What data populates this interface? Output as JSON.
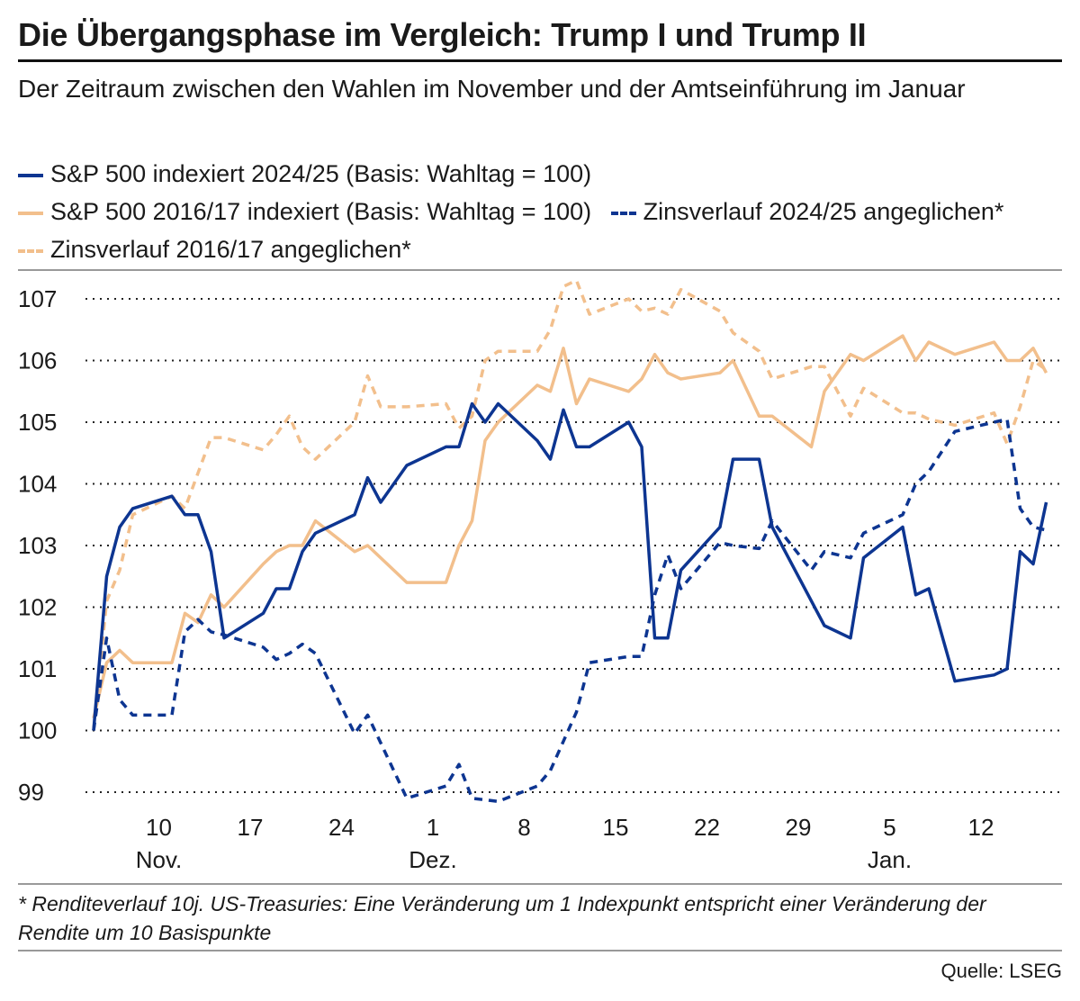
{
  "title": "Die Übergangsphase im Vergleich: Trump I und Trump II",
  "subtitle": "Der Zeitraum zwischen den Wahlen im November und der Amtseinführung im Januar",
  "footnote": "* Renditeverlauf 10j. US-Treasuries: Eine Veränderung um 1 Indexpunkt entspricht einer Veränderung der Rendite um 10 Basispunkte",
  "source": "Quelle: LSEG",
  "colors": {
    "blue": "#0d3591",
    "orange": "#f2bf8c"
  },
  "chart_data": {
    "type": "line",
    "xlabel": "",
    "ylabel": "",
    "ylim": [
      99,
      107
    ],
    "yticks": [
      99,
      100,
      101,
      102,
      103,
      104,
      105,
      106,
      107
    ],
    "xticks": [
      {
        "date": "2024-11-10",
        "label": "10",
        "month": "Nov."
      },
      {
        "date": "2024-11-17",
        "label": "17",
        "month": ""
      },
      {
        "date": "2024-11-24",
        "label": "24",
        "month": ""
      },
      {
        "date": "2024-12-01",
        "label": "1",
        "month": "Dez."
      },
      {
        "date": "2024-12-08",
        "label": "8",
        "month": ""
      },
      {
        "date": "2024-12-15",
        "label": "15",
        "month": ""
      },
      {
        "date": "2024-12-22",
        "label": "22",
        "month": ""
      },
      {
        "date": "2024-12-29",
        "label": "29",
        "month": ""
      },
      {
        "date": "2025-01-05",
        "label": "5",
        "month": "Jan."
      },
      {
        "date": "2025-01-12",
        "label": "12",
        "month": ""
      }
    ],
    "grid": "horizontal dotted",
    "legend_placement": "top",
    "series": [
      {
        "name": "S&P 500 indexiert 2024/25 (Basis: Wahltag = 100)",
        "color": "#0d3591",
        "style": "solid",
        "points": [
          [
            "2024-11-05",
            100
          ],
          [
            "2024-11-06",
            102.5
          ],
          [
            "2024-11-07",
            103.3
          ],
          [
            "2024-11-08",
            103.6
          ],
          [
            "2024-11-11",
            103.8
          ],
          [
            "2024-11-12",
            103.5
          ],
          [
            "2024-11-13",
            103.5
          ],
          [
            "2024-11-14",
            102.9
          ],
          [
            "2024-11-15",
            101.5
          ],
          [
            "2024-11-18",
            101.9
          ],
          [
            "2024-11-19",
            102.3
          ],
          [
            "2024-11-20",
            102.3
          ],
          [
            "2024-11-21",
            102.9
          ],
          [
            "2024-11-22",
            103.2
          ],
          [
            "2024-11-25",
            103.5
          ],
          [
            "2024-11-26",
            104.1
          ],
          [
            "2024-11-27",
            103.7
          ],
          [
            "2024-11-29",
            104.3
          ],
          [
            "2024-12-02",
            104.6
          ],
          [
            "2024-12-03",
            104.6
          ],
          [
            "2024-12-04",
            105.3
          ],
          [
            "2024-12-05",
            105.0
          ],
          [
            "2024-12-06",
            105.3
          ],
          [
            "2024-12-09",
            104.7
          ],
          [
            "2024-12-10",
            104.4
          ],
          [
            "2024-12-11",
            105.2
          ],
          [
            "2024-12-12",
            104.6
          ],
          [
            "2024-12-13",
            104.6
          ],
          [
            "2024-12-16",
            105.0
          ],
          [
            "2024-12-17",
            104.6
          ],
          [
            "2024-12-18",
            101.5
          ],
          [
            "2024-12-19",
            101.5
          ],
          [
            "2024-12-20",
            102.6
          ],
          [
            "2024-12-23",
            103.3
          ],
          [
            "2024-12-24",
            104.4
          ],
          [
            "2024-12-26",
            104.4
          ],
          [
            "2024-12-27",
            103.3
          ],
          [
            "2024-12-31",
            101.7
          ],
          [
            "2025-01-02",
            101.5
          ],
          [
            "2025-01-03",
            102.8
          ],
          [
            "2025-01-06",
            103.3
          ],
          [
            "2025-01-07",
            102.2
          ],
          [
            "2025-01-08",
            102.3
          ],
          [
            "2025-01-10",
            100.8
          ],
          [
            "2025-01-13",
            100.9
          ],
          [
            "2025-01-14",
            101.0
          ],
          [
            "2025-01-15",
            102.9
          ],
          [
            "2025-01-16",
            102.7
          ],
          [
            "2025-01-17",
            103.7
          ]
        ]
      },
      {
        "name": "S&P 500 2016/17 indexiert (Basis: Wahltag = 100)",
        "color": "#f2bf8c",
        "style": "solid",
        "points": [
          [
            "2024-11-05",
            100.2
          ],
          [
            "2024-11-06",
            101.1
          ],
          [
            "2024-11-07",
            101.3
          ],
          [
            "2024-11-08",
            101.1
          ],
          [
            "2024-11-11",
            101.1
          ],
          [
            "2024-11-12",
            101.9
          ],
          [
            "2024-11-13",
            101.75
          ],
          [
            "2024-11-14",
            102.2
          ],
          [
            "2024-11-15",
            102.0
          ],
          [
            "2024-11-18",
            102.7
          ],
          [
            "2024-11-19",
            102.9
          ],
          [
            "2024-11-20",
            103.0
          ],
          [
            "2024-11-21",
            103.0
          ],
          [
            "2024-11-22",
            103.4
          ],
          [
            "2024-11-25",
            102.9
          ],
          [
            "2024-11-26",
            103.0
          ],
          [
            "2024-11-29",
            102.4
          ],
          [
            "2024-12-02",
            102.4
          ],
          [
            "2024-12-03",
            103.0
          ],
          [
            "2024-12-04",
            103.4
          ],
          [
            "2024-12-05",
            104.7
          ],
          [
            "2024-12-06",
            105.0
          ],
          [
            "2024-12-09",
            105.6
          ],
          [
            "2024-12-10",
            105.5
          ],
          [
            "2024-12-11",
            106.2
          ],
          [
            "2024-12-12",
            105.3
          ],
          [
            "2024-12-13",
            105.7
          ],
          [
            "2024-12-16",
            105.5
          ],
          [
            "2024-12-17",
            105.7
          ],
          [
            "2024-12-18",
            106.1
          ],
          [
            "2024-12-19",
            105.8
          ],
          [
            "2024-12-20",
            105.7
          ],
          [
            "2024-12-23",
            105.8
          ],
          [
            "2024-12-24",
            106.0
          ],
          [
            "2024-12-26",
            105.1
          ],
          [
            "2024-12-27",
            105.1
          ],
          [
            "2024-12-30",
            104.6
          ],
          [
            "2024-12-31",
            105.5
          ],
          [
            "2025-01-02",
            106.1
          ],
          [
            "2025-01-03",
            106.0
          ],
          [
            "2025-01-06",
            106.4
          ],
          [
            "2025-01-07",
            106.0
          ],
          [
            "2025-01-08",
            106.3
          ],
          [
            "2025-01-10",
            106.1
          ],
          [
            "2025-01-13",
            106.3
          ],
          [
            "2025-01-14",
            106.0
          ],
          [
            "2025-01-15",
            106.0
          ],
          [
            "2025-01-16",
            106.2
          ],
          [
            "2025-01-17",
            105.8
          ]
        ]
      },
      {
        "name": "Zinsverlauf 2024/25 angeglichen*",
        "color": "#0d3591",
        "style": "dashed",
        "points": [
          [
            "2024-11-05",
            100
          ],
          [
            "2024-11-06",
            101.5
          ],
          [
            "2024-11-07",
            100.5
          ],
          [
            "2024-11-08",
            100.25
          ],
          [
            "2024-11-11",
            100.25
          ],
          [
            "2024-11-12",
            101.6
          ],
          [
            "2024-11-13",
            101.8
          ],
          [
            "2024-11-14",
            101.6
          ],
          [
            "2024-11-15",
            101.55
          ],
          [
            "2024-11-18",
            101.35
          ],
          [
            "2024-11-19",
            101.15
          ],
          [
            "2024-11-20",
            101.25
          ],
          [
            "2024-11-21",
            101.4
          ],
          [
            "2024-11-22",
            101.25
          ],
          [
            "2024-11-25",
            99.95
          ],
          [
            "2024-11-26",
            100.25
          ],
          [
            "2024-11-27",
            99.8
          ],
          [
            "2024-11-29",
            98.9
          ],
          [
            "2024-12-02",
            99.1
          ],
          [
            "2024-12-03",
            99.45
          ],
          [
            "2024-12-04",
            98.9
          ],
          [
            "2024-12-06",
            98.85
          ],
          [
            "2024-12-09",
            99.1
          ],
          [
            "2024-12-10",
            99.35
          ],
          [
            "2024-12-12",
            100.3
          ],
          [
            "2024-12-13",
            101.1
          ],
          [
            "2024-12-16",
            101.2
          ],
          [
            "2024-12-17",
            101.2
          ],
          [
            "2024-12-18",
            102.2
          ],
          [
            "2024-12-19",
            102.85
          ],
          [
            "2024-12-20",
            102.3
          ],
          [
            "2024-12-23",
            103.05
          ],
          [
            "2024-12-24",
            103.0
          ],
          [
            "2024-12-26",
            102.95
          ],
          [
            "2024-12-27",
            103.4
          ],
          [
            "2024-12-30",
            102.6
          ],
          [
            "2024-12-31",
            102.9
          ],
          [
            "2025-01-02",
            102.8
          ],
          [
            "2025-01-03",
            103.2
          ],
          [
            "2025-01-06",
            103.5
          ],
          [
            "2025-01-07",
            104.0
          ],
          [
            "2025-01-08",
            104.2
          ],
          [
            "2025-01-10",
            104.85
          ],
          [
            "2025-01-13",
            105.0
          ],
          [
            "2025-01-14",
            105.05
          ],
          [
            "2025-01-15",
            103.6
          ],
          [
            "2025-01-16",
            103.3
          ],
          [
            "2025-01-17",
            103.25
          ]
        ]
      },
      {
        "name": "Zinsverlauf 2016/17 angeglichen*",
        "color": "#f2bf8c",
        "style": "dashed",
        "points": [
          [
            "2024-11-05",
            100
          ],
          [
            "2024-11-06",
            102.1
          ],
          [
            "2024-11-07",
            102.6
          ],
          [
            "2024-11-08",
            103.5
          ],
          [
            "2024-11-11",
            103.8
          ],
          [
            "2024-11-12",
            103.6
          ],
          [
            "2024-11-14",
            104.75
          ],
          [
            "2024-11-15",
            104.75
          ],
          [
            "2024-11-18",
            104.55
          ],
          [
            "2024-11-19",
            104.8
          ],
          [
            "2024-11-20",
            105.1
          ],
          [
            "2024-11-21",
            104.6
          ],
          [
            "2024-11-22",
            104.4
          ],
          [
            "2024-11-25",
            105.0
          ],
          [
            "2024-11-26",
            105.75
          ],
          [
            "2024-11-27",
            105.25
          ],
          [
            "2024-11-29",
            105.25
          ],
          [
            "2024-12-02",
            105.3
          ],
          [
            "2024-12-03",
            104.9
          ],
          [
            "2024-12-04",
            105.1
          ],
          [
            "2024-12-05",
            106.0
          ],
          [
            "2024-12-06",
            106.15
          ],
          [
            "2024-12-09",
            106.15
          ],
          [
            "2024-12-10",
            106.5
          ],
          [
            "2024-12-11",
            107.2
          ],
          [
            "2024-12-12",
            107.3
          ],
          [
            "2024-12-13",
            106.75
          ],
          [
            "2024-12-16",
            107.0
          ],
          [
            "2024-12-17",
            106.8
          ],
          [
            "2024-12-18",
            106.85
          ],
          [
            "2024-12-19",
            106.75
          ],
          [
            "2024-12-20",
            107.15
          ],
          [
            "2024-12-23",
            106.8
          ],
          [
            "2024-12-24",
            106.45
          ],
          [
            "2024-12-26",
            106.15
          ],
          [
            "2024-12-27",
            105.7
          ],
          [
            "2024-12-30",
            105.9
          ],
          [
            "2024-12-31",
            105.9
          ],
          [
            "2025-01-02",
            105.1
          ],
          [
            "2025-01-03",
            105.55
          ],
          [
            "2025-01-06",
            105.15
          ],
          [
            "2025-01-07",
            105.15
          ],
          [
            "2025-01-08",
            105.05
          ],
          [
            "2025-01-10",
            104.95
          ],
          [
            "2025-01-13",
            105.15
          ],
          [
            "2025-01-14",
            104.65
          ],
          [
            "2025-01-15",
            105.25
          ],
          [
            "2025-01-16",
            106.0
          ],
          [
            "2025-01-17",
            105.85
          ]
        ]
      }
    ]
  }
}
